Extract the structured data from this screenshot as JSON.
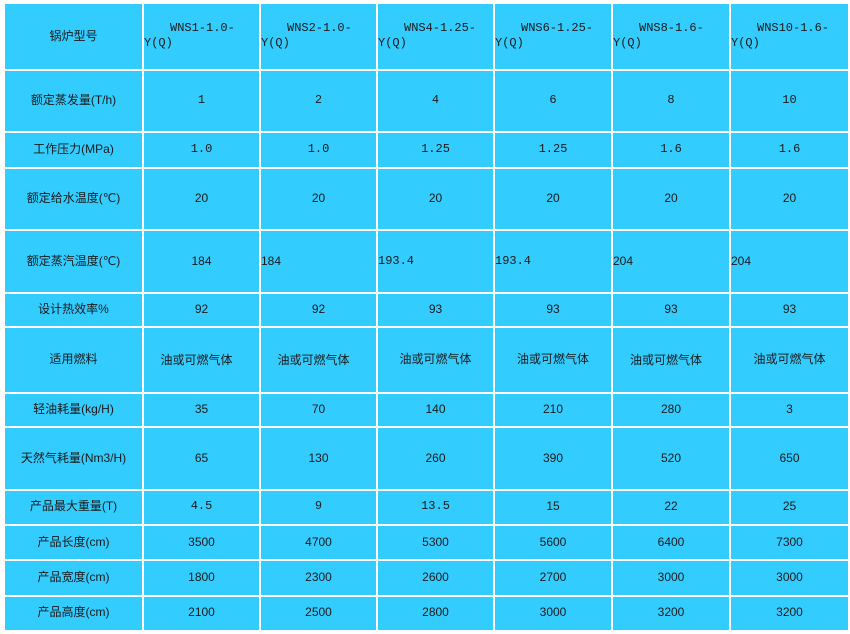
{
  "table": {
    "header_label": "锅炉型号",
    "models": [
      {
        "top": "WNS1-1.0-",
        "bottom": "Y(Q)"
      },
      {
        "top": "WNS2-1.0-",
        "bottom": "Y(Q)"
      },
      {
        "top": "WNS4-1.25-",
        "bottom": "Y(Q)"
      },
      {
        "top": "WNS6-1.25-",
        "bottom": "Y(Q)"
      },
      {
        "top": "WNS8-1.6-",
        "bottom": "Y(Q)"
      },
      {
        "top": "WNS10-1.6-",
        "bottom": "Y(Q)"
      }
    ],
    "rows": [
      {
        "label": "额定蒸发量(T/h)",
        "values": [
          "1",
          "2",
          "4",
          "6",
          "8",
          "10"
        ]
      },
      {
        "label": "工作压力(MPa)",
        "values": [
          "1.0",
          "1.0",
          "1.25",
          "1.25",
          "1.6",
          "1.6"
        ]
      },
      {
        "label": "额定给水温度(℃)",
        "values": [
          "20",
          "20",
          "20",
          "20",
          "20",
          "20"
        ]
      },
      {
        "label": "额定蒸汽温度(℃)",
        "values": [
          "184",
          "184",
          "193.4",
          "193.4",
          "204",
          "204"
        ]
      },
      {
        "label": "设计热效率%",
        "values": [
          "92",
          "92",
          "93",
          "93",
          "93",
          "93"
        ]
      },
      {
        "label": "适用燃料",
        "values": [
          "油或可燃气体",
          "油或可燃气体",
          "油或可燃气体",
          "油或可燃气体",
          "油或可燃气体",
          "油或可燃气体"
        ]
      },
      {
        "label": "轻油耗量(kg/H)",
        "values": [
          "35",
          "70",
          "140",
          "210",
          "280",
          "3"
        ]
      },
      {
        "label": "天然气耗量(Nm3/H)",
        "values": [
          "65",
          "130",
          "260",
          "390",
          "520",
          "650"
        ]
      },
      {
        "label": "产品最大重量(T)",
        "values": [
          "4.5",
          "9",
          "13.5",
          "15",
          "22",
          "25"
        ]
      },
      {
        "label": "产品长度(cm)",
        "values": [
          "3500",
          "4700",
          "5300",
          "5600",
          "6400",
          "7300"
        ]
      },
      {
        "label": "产品宽度(cm)",
        "values": [
          "1800",
          "2300",
          "2600",
          "2700",
          "3000",
          "3000"
        ]
      },
      {
        "label": "产品高度(cm)",
        "values": [
          "2100",
          "2500",
          "2800",
          "3000",
          "3200",
          "3200"
        ]
      }
    ]
  },
  "colors": {
    "cell_background": "#33ccff",
    "grid": "#ffffff",
    "text": "#1a1a1a"
  }
}
